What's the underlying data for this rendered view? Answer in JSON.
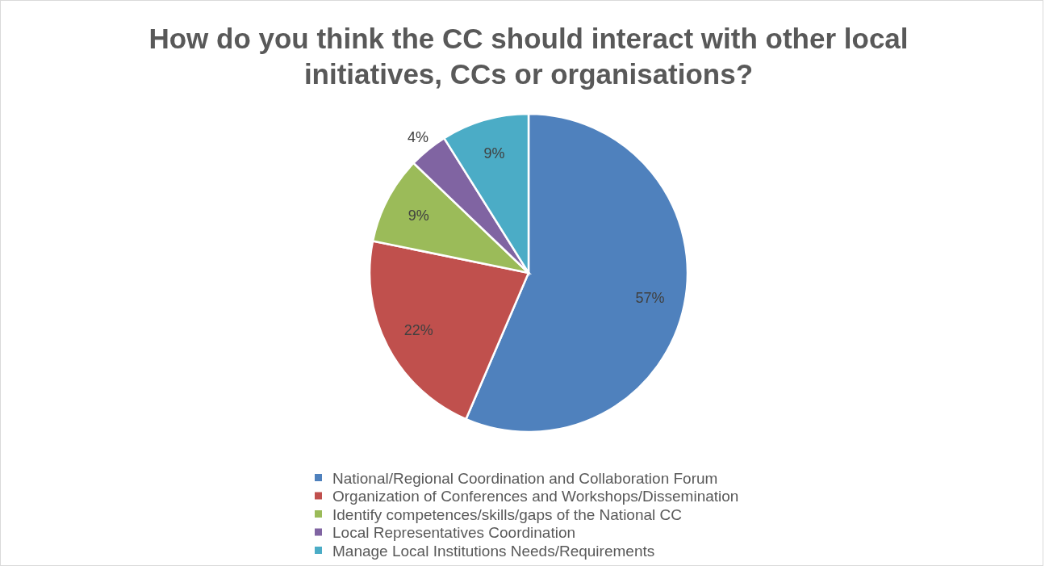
{
  "chart_data": {
    "type": "pie",
    "title": "How do you think the CC should interact with other local initiatives, CCs or organisations?",
    "categories": [
      "National/Regional Coordination and Collaboration Forum",
      "Organization of Conferences and Workshops/Dissemination",
      "Identify competences/skills/gaps of the National CC",
      "Local Representatives Coordination",
      "Manage Local Institutions Needs/Requirements"
    ],
    "values": [
      57,
      22,
      9,
      4,
      9
    ],
    "colors": [
      "#4f81bd",
      "#c0504d",
      "#9bbb59",
      "#8064a2",
      "#4bacc6"
    ],
    "value_labels": [
      "57%",
      "22%",
      "9%",
      "4%",
      "9%"
    ],
    "legend": "bottom"
  }
}
